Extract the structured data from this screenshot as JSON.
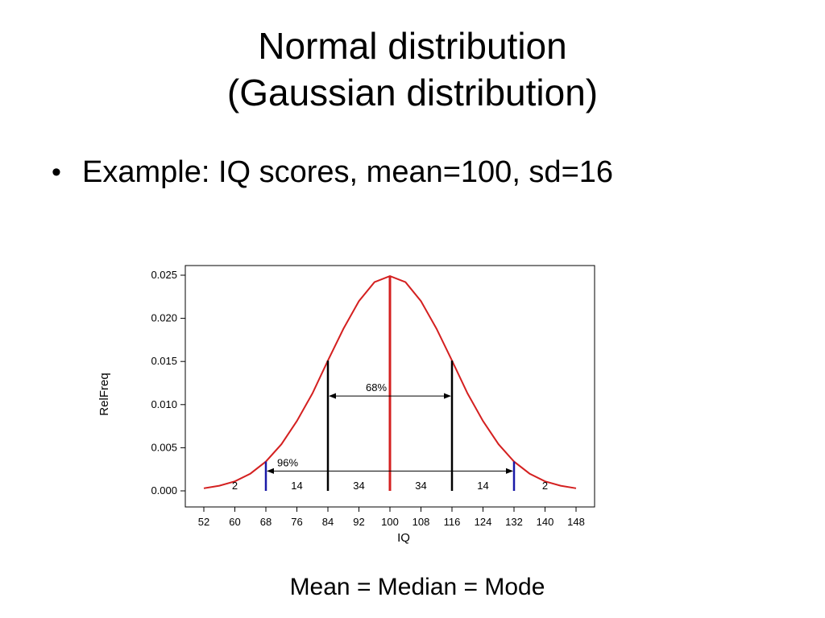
{
  "slide": {
    "title_line1": "Normal distribution",
    "title_line2": "(Gaussian distribution)",
    "bullets": [
      "Example: IQ scores, mean=100, sd=16"
    ],
    "caption": "Mean = Median = Mode"
  },
  "chart_data": {
    "type": "line",
    "xlabel": "IQ",
    "ylabel": "RelFreq",
    "xlim": [
      52,
      148
    ],
    "ylim": [
      0,
      0.025
    ],
    "x_ticks": [
      52,
      60,
      68,
      76,
      84,
      92,
      100,
      108,
      116,
      124,
      132,
      140,
      148
    ],
    "y_ticks": [
      "0.000",
      "0.005",
      "0.010",
      "0.015",
      "0.020",
      "0.025"
    ],
    "grid": false,
    "series": [
      {
        "color": "#d42020",
        "x": [
          52,
          56,
          60,
          64,
          68,
          72,
          76,
          80,
          84,
          88,
          92,
          96,
          100,
          104,
          108,
          112,
          116,
          120,
          124,
          128,
          132,
          136,
          140,
          144,
          148
        ],
        "y": [
          0.0003,
          0.0006,
          0.0011,
          0.002,
          0.0034,
          0.0054,
          0.0081,
          0.0113,
          0.0151,
          0.0188,
          0.022,
          0.0242,
          0.0249,
          0.0242,
          0.022,
          0.0188,
          0.0151,
          0.0113,
          0.0081,
          0.0054,
          0.0034,
          0.002,
          0.0011,
          0.0006,
          0.0003
        ]
      }
    ],
    "vlines": [
      {
        "x": 68,
        "color": "#1a1aa8"
      },
      {
        "x": 84,
        "color": "#000000"
      },
      {
        "x": 100,
        "color": "#d42020"
      },
      {
        "x": 116,
        "color": "#000000"
      },
      {
        "x": 132,
        "color": "#1a1aa8"
      }
    ],
    "annotations": [
      {
        "text": "68%",
        "from": 84,
        "to": 116,
        "y": 0.011
      },
      {
        "text": "96%",
        "from": 68,
        "to": 132,
        "y": 0.0023
      }
    ],
    "region_labels": [
      {
        "text": "2",
        "x": 60
      },
      {
        "text": "14",
        "x": 76
      },
      {
        "text": "34",
        "x": 92
      },
      {
        "text": "34",
        "x": 108
      },
      {
        "text": "14",
        "x": 124
      },
      {
        "text": "2",
        "x": 140
      }
    ]
  }
}
